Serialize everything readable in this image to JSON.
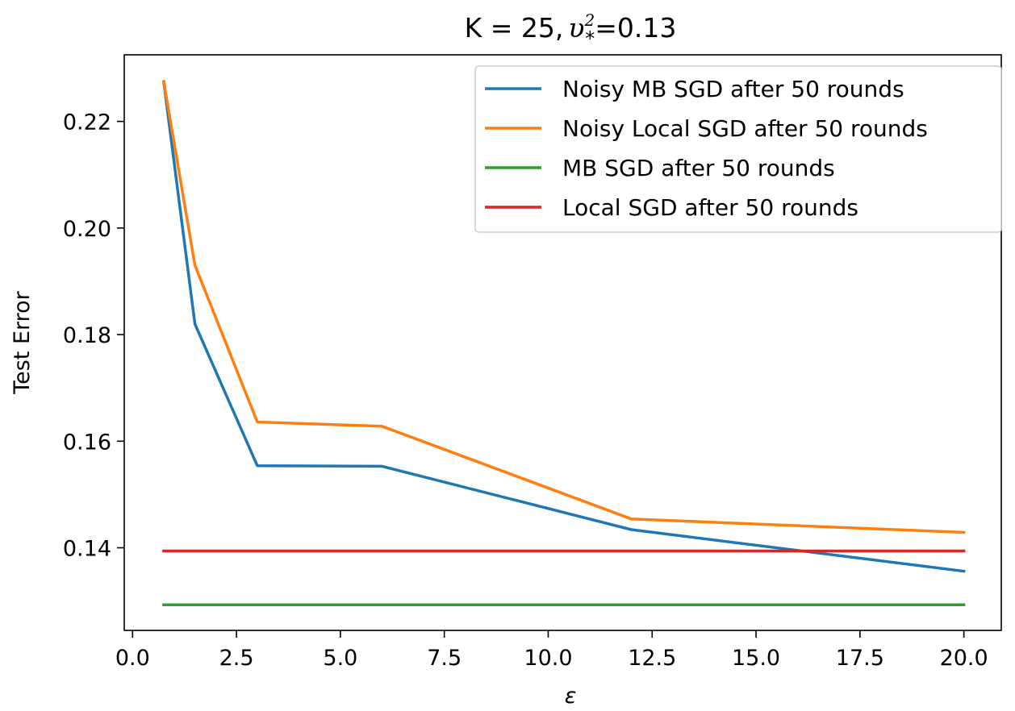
{
  "chart_data": {
    "type": "line",
    "title_prefix": "K = 25,",
    "title_var": "υ",
    "title_sup": "2",
    "title_sub": "*",
    "title_suffix": "=0.13",
    "xlabel": "ε",
    "ylabel": "Test Error",
    "xlim": [
      -0.2,
      20.9
    ],
    "ylim": [
      0.1245,
      0.2325
    ],
    "xticks": [
      0.0,
      2.5,
      5.0,
      7.5,
      10.0,
      12.5,
      15.0,
      17.5,
      20.0
    ],
    "xtick_labels": [
      "0.0",
      "2.5",
      "5.0",
      "7.5",
      "10.0",
      "12.5",
      "15.0",
      "17.5",
      "20.0"
    ],
    "yticks": [
      0.14,
      0.16,
      0.18,
      0.2,
      0.22
    ],
    "ytick_labels": [
      "0.14",
      "0.16",
      "0.18",
      "0.20",
      "0.22"
    ],
    "grid": false,
    "legend_position": "upper right",
    "series": [
      {
        "name": "Noisy MB SGD after 50 rounds",
        "color": "#1f77b4",
        "x": [
          0.75,
          1.5,
          3.0,
          6.0,
          12.0,
          20.0
        ],
        "y": [
          0.2275,
          0.182,
          0.1554,
          0.1553,
          0.1434,
          0.1356
        ]
      },
      {
        "name": "Noisy Local SGD after 50 rounds",
        "color": "#ff7f0e",
        "x": [
          0.75,
          1.5,
          3.0,
          6.0,
          12.0,
          20.0
        ],
        "y": [
          0.2275,
          0.193,
          0.1636,
          0.1628,
          0.1454,
          0.1429
        ]
      },
      {
        "name": "MB SGD after 50 rounds",
        "color": "#2ca02c",
        "x": [
          0.75,
          20.0
        ],
        "y": [
          0.1293,
          0.1293
        ]
      },
      {
        "name": "Local SGD after 50 rounds",
        "color": "#d62728",
        "x": [
          0.75,
          20.0
        ],
        "y": [
          0.1394,
          0.1394
        ]
      }
    ]
  }
}
